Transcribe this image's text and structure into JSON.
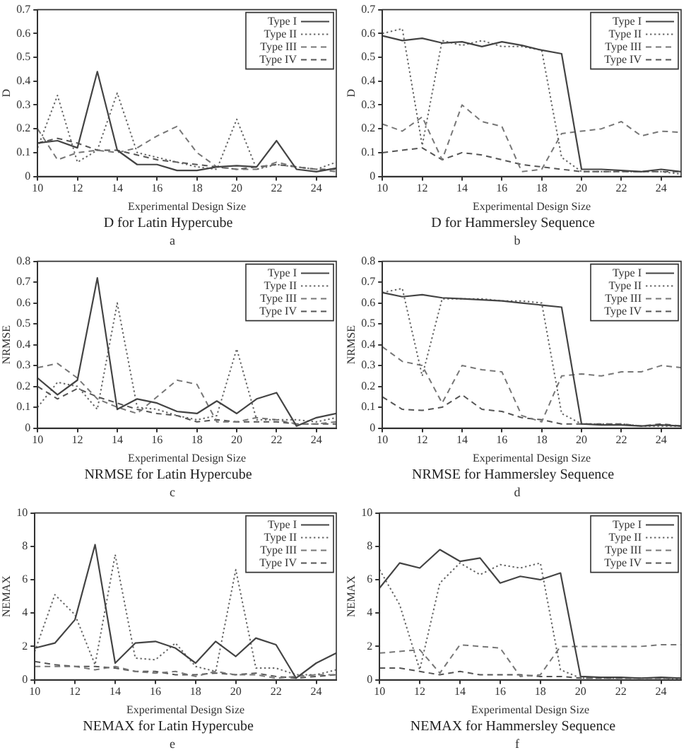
{
  "chart_data": [
    {
      "type": "line",
      "title": "D for Latin Hypercube",
      "xlabel": "Experimental Design Size",
      "ylabel": "D",
      "annotations": [
        "a"
      ],
      "legend": "top right",
      "grid": false,
      "marker": "none",
      "xlim": [
        10,
        25
      ],
      "xticks": [
        10,
        12,
        14,
        16,
        18,
        20,
        22,
        24
      ],
      "ylim": [
        0,
        0.7
      ],
      "yticks": [
        0,
        0.1,
        0.2,
        0.3,
        0.4,
        0.5,
        0.6,
        0.7
      ],
      "x": [
        10,
        11,
        12,
        13,
        14,
        15,
        16,
        17,
        18,
        19,
        20,
        21,
        22,
        23,
        24,
        25
      ],
      "series": [
        {
          "name": "Type I",
          "color": "#444444",
          "line_style": "solid",
          "values": [
            0.14,
            0.15,
            0.12,
            0.44,
            0.11,
            0.05,
            0.05,
            0.025,
            0.025,
            0.04,
            0.045,
            0.04,
            0.15,
            0.03,
            0.02,
            0.035
          ]
        },
        {
          "name": "Type II",
          "color": "#666666",
          "line_style": "dotted",
          "values": [
            0.12,
            0.34,
            0.06,
            0.11,
            0.35,
            0.1,
            0.08,
            0.06,
            0.04,
            0.03,
            0.24,
            0.03,
            0.05,
            0.04,
            0.03,
            0.06
          ]
        },
        {
          "name": "Type III",
          "color": "#777777",
          "line_style": "dashed",
          "values": [
            0.2,
            0.07,
            0.1,
            0.11,
            0.1,
            0.12,
            0.17,
            0.21,
            0.1,
            0.04,
            0.03,
            0.03,
            0.06,
            0.04,
            0.03,
            0.02
          ]
        },
        {
          "name": "Type IV",
          "color": "#555555",
          "line_style": "dashed",
          "values": [
            0.14,
            0.16,
            0.14,
            0.11,
            0.11,
            0.09,
            0.07,
            0.06,
            0.05,
            0.04,
            0.03,
            0.04,
            0.05,
            0.04,
            0.03,
            0.03
          ]
        }
      ]
    },
    {
      "type": "line",
      "title": "D for Hammersley Sequence",
      "xlabel": "Experimental Design Size",
      "ylabel": "D",
      "annotations": [
        "b"
      ],
      "legend": "top right",
      "grid": false,
      "marker": "none",
      "xlim": [
        10,
        25
      ],
      "xticks": [
        10,
        12,
        14,
        16,
        18,
        20,
        22,
        24
      ],
      "ylim": [
        0,
        0.7
      ],
      "yticks": [
        0,
        0.1,
        0.2,
        0.3,
        0.4,
        0.5,
        0.6,
        0.7
      ],
      "x": [
        10,
        11,
        12,
        13,
        14,
        15,
        16,
        17,
        18,
        19,
        20,
        21,
        22,
        23,
        24,
        25
      ],
      "series": [
        {
          "name": "Type I",
          "color": "#444444",
          "line_style": "solid",
          "values": [
            0.59,
            0.57,
            0.58,
            0.56,
            0.565,
            0.545,
            0.565,
            0.55,
            0.53,
            0.515,
            0.03,
            0.03,
            0.025,
            0.02,
            0.03,
            0.02
          ]
        },
        {
          "name": "Type II",
          "color": "#666666",
          "line_style": "dotted",
          "values": [
            0.6,
            0.62,
            0.13,
            0.57,
            0.55,
            0.57,
            0.545,
            0.545,
            0.53,
            0.08,
            0.02,
            0.02,
            0.02,
            0.02,
            0.02,
            0.01
          ]
        },
        {
          "name": "Type III",
          "color": "#777777",
          "line_style": "dashed",
          "values": [
            0.22,
            0.19,
            0.25,
            0.07,
            0.3,
            0.23,
            0.21,
            0.02,
            0.03,
            0.18,
            0.19,
            0.2,
            0.23,
            0.17,
            0.19,
            0.185
          ]
        },
        {
          "name": "Type IV",
          "color": "#555555",
          "line_style": "dashed",
          "values": [
            0.1,
            0.11,
            0.12,
            0.07,
            0.1,
            0.09,
            0.07,
            0.05,
            0.04,
            0.03,
            0.02,
            0.02,
            0.02,
            0.02,
            0.02,
            0.02
          ]
        }
      ]
    },
    {
      "type": "line",
      "title": "NRMSE for Latin Hypercube",
      "xlabel": "Experimental Design Size",
      "ylabel": "NRMSE",
      "annotations": [
        "c"
      ],
      "legend": "top right",
      "grid": false,
      "marker": "none",
      "xlim": [
        10,
        25
      ],
      "xticks": [
        10,
        12,
        14,
        16,
        18,
        20,
        22,
        24
      ],
      "ylim": [
        0,
        0.8
      ],
      "yticks": [
        0,
        0.1,
        0.2,
        0.3,
        0.4,
        0.5,
        0.6,
        0.7,
        0.8
      ],
      "x": [
        10,
        11,
        12,
        13,
        14,
        15,
        16,
        17,
        18,
        19,
        20,
        21,
        22,
        23,
        24,
        25
      ],
      "series": [
        {
          "name": "Type I",
          "color": "#444444",
          "line_style": "solid",
          "values": [
            0.24,
            0.16,
            0.23,
            0.72,
            0.09,
            0.14,
            0.12,
            0.08,
            0.07,
            0.13,
            0.07,
            0.14,
            0.17,
            0.01,
            0.05,
            0.07
          ]
        },
        {
          "name": "Type II",
          "color": "#666666",
          "line_style": "dotted",
          "values": [
            0.1,
            0.22,
            0.2,
            0.09,
            0.6,
            0.1,
            0.09,
            0.06,
            0.04,
            0.06,
            0.38,
            0.04,
            0.04,
            0.04,
            0.03,
            0.05
          ]
        },
        {
          "name": "Type III",
          "color": "#777777",
          "line_style": "dashed",
          "values": [
            0.29,
            0.31,
            0.24,
            0.14,
            0.1,
            0.07,
            0.15,
            0.23,
            0.21,
            0.03,
            0.03,
            0.05,
            0.04,
            0.02,
            0.02,
            0.03
          ]
        },
        {
          "name": "Type IV",
          "color": "#555555",
          "line_style": "dashed",
          "values": [
            0.2,
            0.14,
            0.19,
            0.15,
            0.12,
            0.09,
            0.07,
            0.06,
            0.03,
            0.04,
            0.03,
            0.03,
            0.03,
            0.02,
            0.02,
            0.02
          ]
        }
      ]
    },
    {
      "type": "line",
      "title": "NRMSE for Hammersley Sequence",
      "xlabel": "Experimental Design Size",
      "ylabel": "NRMSE",
      "annotations": [
        "d"
      ],
      "legend": "top right",
      "grid": false,
      "marker": "none",
      "xlim": [
        10,
        25
      ],
      "xticks": [
        10,
        12,
        14,
        16,
        18,
        20,
        22,
        24
      ],
      "ylim": [
        0,
        0.8
      ],
      "yticks": [
        0,
        0.1,
        0.2,
        0.3,
        0.4,
        0.5,
        0.6,
        0.7,
        0.8
      ],
      "x": [
        10,
        11,
        12,
        13,
        14,
        15,
        16,
        17,
        18,
        19,
        20,
        21,
        22,
        23,
        24,
        25
      ],
      "series": [
        {
          "name": "Type I",
          "color": "#444444",
          "line_style": "solid",
          "values": [
            0.65,
            0.63,
            0.64,
            0.625,
            0.62,
            0.615,
            0.61,
            0.6,
            0.59,
            0.58,
            0.02,
            0.015,
            0.015,
            0.01,
            0.015,
            0.01
          ]
        },
        {
          "name": "Type II",
          "color": "#666666",
          "line_style": "dotted",
          "values": [
            0.65,
            0.67,
            0.25,
            0.62,
            0.62,
            0.62,
            0.61,
            0.61,
            0.6,
            0.07,
            0.02,
            0.02,
            0.02,
            0.01,
            0.01,
            0.01
          ]
        },
        {
          "name": "Type III",
          "color": "#777777",
          "line_style": "dashed",
          "values": [
            0.39,
            0.32,
            0.3,
            0.12,
            0.3,
            0.28,
            0.27,
            0.06,
            0.03,
            0.25,
            0.26,
            0.25,
            0.27,
            0.27,
            0.3,
            0.29
          ]
        },
        {
          "name": "Type IV",
          "color": "#555555",
          "line_style": "dashed",
          "values": [
            0.15,
            0.09,
            0.085,
            0.1,
            0.16,
            0.09,
            0.08,
            0.05,
            0.04,
            0.02,
            0.02,
            0.02,
            0.02,
            0.01,
            0.02,
            0.01
          ]
        }
      ]
    },
    {
      "type": "line",
      "title": "NEMAX for Latin Hypercube",
      "xlabel": "Experimental Design Size",
      "ylabel": "NEMAX",
      "annotations": [
        "e"
      ],
      "legend": "top right",
      "grid": false,
      "marker": "none",
      "xlim": [
        10,
        25
      ],
      "xticks": [
        10,
        12,
        14,
        16,
        18,
        20,
        22,
        24
      ],
      "ylim": [
        0,
        10
      ],
      "yticks": [
        0,
        2,
        4,
        6,
        8,
        10
      ],
      "x": [
        10,
        11,
        12,
        13,
        14,
        15,
        16,
        17,
        18,
        19,
        20,
        21,
        22,
        23,
        24,
        25
      ],
      "series": [
        {
          "name": "Type I",
          "color": "#444444",
          "line_style": "solid",
          "values": [
            1.9,
            2.2,
            3.6,
            8.1,
            1.0,
            2.2,
            2.3,
            1.9,
            1.0,
            2.3,
            1.4,
            2.5,
            2.1,
            0.1,
            1.0,
            1.6
          ]
        },
        {
          "name": "Type II",
          "color": "#666666",
          "line_style": "dotted",
          "values": [
            1.7,
            5.1,
            3.9,
            0.9,
            7.5,
            1.3,
            1.2,
            2.2,
            0.8,
            0.5,
            6.6,
            0.7,
            0.7,
            0.3,
            0.3,
            0.6
          ]
        },
        {
          "name": "Type III",
          "color": "#777777",
          "line_style": "dashed",
          "values": [
            0.8,
            0.8,
            0.8,
            0.6,
            0.8,
            0.5,
            0.4,
            0.5,
            0.2,
            0.5,
            0.3,
            0.3,
            0.1,
            0.2,
            0.3,
            0.3
          ]
        },
        {
          "name": "Type IV",
          "color": "#555555",
          "line_style": "dashed",
          "values": [
            1.1,
            0.9,
            0.8,
            0.8,
            0.7,
            0.5,
            0.5,
            0.3,
            0.3,
            0.4,
            0.3,
            0.4,
            0.2,
            0.1,
            0.2,
            0.3
          ]
        }
      ]
    },
    {
      "type": "line",
      "title": "NEMAX for Hammersley Sequence",
      "xlabel": "Experimental Design Size",
      "ylabel": "NEMAX",
      "annotations": [
        "f"
      ],
      "legend": "top right",
      "grid": false,
      "marker": "none",
      "xlim": [
        10,
        25
      ],
      "xticks": [
        10,
        12,
        14,
        16,
        18,
        20,
        22,
        24
      ],
      "ylim": [
        0,
        10
      ],
      "yticks": [
        0,
        2,
        4,
        6,
        8,
        10
      ],
      "x": [
        10,
        11,
        12,
        13,
        14,
        15,
        16,
        17,
        18,
        19,
        20,
        21,
        22,
        23,
        24,
        25
      ],
      "series": [
        {
          "name": "Type I",
          "color": "#444444",
          "line_style": "solid",
          "values": [
            5.5,
            7.0,
            6.7,
            7.8,
            7.1,
            7.3,
            5.8,
            6.2,
            6.0,
            6.4,
            0.2,
            0.15,
            0.15,
            0.1,
            0.15,
            0.1
          ]
        },
        {
          "name": "Type II",
          "color": "#666666",
          "line_style": "dotted",
          "values": [
            6.6,
            4.5,
            0.6,
            5.8,
            7.0,
            6.3,
            6.9,
            6.7,
            7.0,
            0.6,
            0.1,
            0.1,
            0.1,
            0.1,
            0.1,
            0.05
          ]
        },
        {
          "name": "Type III",
          "color": "#777777",
          "line_style": "dashed",
          "values": [
            1.6,
            1.7,
            1.8,
            0.4,
            2.1,
            2.0,
            1.9,
            0.2,
            0.3,
            2.0,
            2.0,
            2.0,
            2.0,
            2.0,
            2.1,
            2.1
          ]
        },
        {
          "name": "Type IV",
          "color": "#555555",
          "line_style": "dashed",
          "values": [
            0.7,
            0.7,
            0.5,
            0.3,
            0.5,
            0.3,
            0.3,
            0.3,
            0.2,
            0.2,
            0.1,
            0.1,
            0.1,
            0.1,
            0.1,
            0.1
          ]
        }
      ]
    }
  ]
}
